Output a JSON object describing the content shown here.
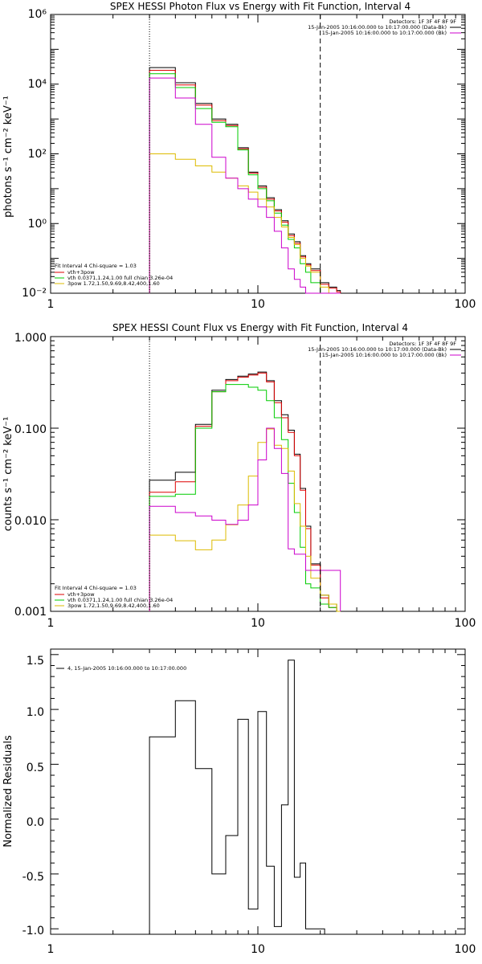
{
  "chart_data": [
    {
      "type": "line",
      "title": "SPEX HESSI Photon Flux vs Energy with Fit Function, Interval 4",
      "ylabel": "photons s⁻¹ cm⁻² keV⁻¹",
      "xlabel": "",
      "x_scale": "log",
      "y_scale": "log",
      "xlim": [
        1,
        100
      ],
      "ylim": [
        0.01,
        1000000
      ],
      "x_tick_labels": [
        "1",
        "10",
        "100"
      ],
      "y_tick_labels": [
        "10⁻²",
        "10⁰",
        "10²",
        "10⁴",
        "10⁶"
      ],
      "fit_range": [
        3,
        20
      ],
      "detectors": "Detectors: 1F 3F 4F 8F 9F",
      "legend_top": [
        "15-Jan-2005 10:16:00.000 to 10:17:00.000 (Data-Bk)",
        "15-Jan-2005 10:16:00.000 to 10:17:00.000 (Bk)"
      ],
      "fit_header": "Fit Interval 4   Chi-square = 1.03",
      "legend_fit": [
        "vth+3pow",
        "vth 0.0371,1.24,1.00  full chian 3.26e-04",
        "3pow 1.72,1.50,9.69,8.42,400,1.60"
      ],
      "energy_edges": [
        3,
        4,
        5,
        6,
        7,
        8,
        9,
        10,
        11,
        12,
        13,
        14,
        15,
        16,
        17,
        18,
        19,
        20,
        21,
        22,
        23,
        24,
        25
      ],
      "series": [
        {
          "name": "15-Jan-2005 10:16:00.000 to 10:17:00.000 (Data-Bk)",
          "color": "#000000",
          "values": [
            30000,
            11000,
            2800,
            1000,
            700,
            150,
            30,
            12,
            5.5,
            2.5,
            1.2,
            0.5,
            0.3,
            0.12,
            0.07,
            0.05,
            0.05,
            0.02,
            0.02,
            0.015,
            0.015,
            0.012
          ]
        },
        {
          "name": "vth+3pow",
          "color": "#dd0000",
          "values": [
            25000,
            9500,
            2500,
            900,
            650,
            140,
            28,
            11,
            5,
            2.3,
            1.1,
            0.45,
            0.27,
            0.11,
            0.065,
            0.045,
            0.045,
            0.018,
            0.018,
            0.014,
            0.014,
            0.011
          ]
        },
        {
          "name": "vth 0.0371,1.24,1.00  full chian 3.26e-04",
          "color": "#00cc00",
          "values": [
            20000,
            8000,
            2000,
            800,
            600,
            130,
            25,
            10,
            4.5,
            2,
            0.9,
            0.35,
            0.2,
            0.07,
            0.04,
            0.02,
            0.02,
            0.008,
            0.008,
            0.006,
            0.006,
            0.005
          ]
        },
        {
          "name": "3pow 1.72,1.50,9.69,8.42,400,1.60",
          "color": "#ddbb00",
          "values": [
            100,
            70,
            45,
            30,
            20,
            12,
            8,
            5,
            3,
            1.5,
            0.8,
            0.4,
            0.25,
            0.1,
            0.06,
            0.04,
            0.04,
            0.015,
            0.015,
            0.01,
            0.01,
            0.008
          ]
        },
        {
          "name": "15-Jan-2005 10:16:00.000 to 10:17:00.000 (Bk)",
          "color": "#cc00cc",
          "values": [
            15000,
            4000,
            700,
            80,
            20,
            10,
            5,
            3,
            1.5,
            0.6,
            0.2,
            0.05,
            0.025,
            0.015,
            0.01,
            0.008,
            0.008,
            0.008,
            0.008,
            0.008,
            0.008,
            0.008
          ]
        }
      ]
    },
    {
      "type": "line",
      "title": "SPEX HESSI Count Flux vs Energy with Fit Function, Interval 4",
      "ylabel": "counts s⁻¹ cm⁻² keV⁻¹",
      "xlabel": "",
      "x_scale": "log",
      "y_scale": "log",
      "xlim": [
        1,
        100
      ],
      "ylim": [
        0.001,
        1
      ],
      "x_tick_labels": [
        "1",
        "10",
        "100"
      ],
      "y_tick_labels": [
        "0.001",
        "0.010",
        "0.100",
        "1.000"
      ],
      "fit_range": [
        3,
        20
      ],
      "detectors": "Detectors: 1F 3F 4F 8F 9F",
      "legend_top": [
        "15-Jan-2005 10:16:00.000 to 10:17:00.000 (Data-Bk)",
        "15-Jan-2005 10:16:00.000 to 10:17:00.000 (Bk)"
      ],
      "fit_header": "Fit Interval 4   Chi-square = 1.03",
      "legend_fit": [
        "vth+3pow",
        "vth 0.0371,1.24,1.00  full chian 3.26e-04",
        "3pow 1.72,1.50,9.69,8.42,400,1.60"
      ],
      "energy_edges": [
        3,
        4,
        5,
        6,
        7,
        8,
        9,
        10,
        11,
        12,
        13,
        14,
        15,
        16,
        17,
        18,
        19,
        20,
        21,
        22,
        23,
        24,
        25
      ],
      "series": [
        {
          "name": "15-Jan-2005 10:16:00.000 to 10:17:00.000 (Data-Bk)",
          "color": "#000000",
          "values": [
            0.027,
            0.033,
            0.11,
            0.26,
            0.34,
            0.37,
            0.39,
            0.41,
            0.33,
            0.2,
            0.14,
            0.095,
            0.052,
            0.022,
            0.0085,
            0.0033,
            0.0033,
            0.0015,
            0.0015,
            0.0012,
            0.0012,
            0.001
          ]
        },
        {
          "name": "vth+3pow",
          "color": "#dd0000",
          "values": [
            0.02,
            0.026,
            0.105,
            0.25,
            0.33,
            0.36,
            0.38,
            0.4,
            0.32,
            0.19,
            0.13,
            0.09,
            0.05,
            0.021,
            0.008,
            0.0032,
            0.0032,
            0.0014,
            0.0014,
            0.0011,
            0.0011,
            0.001
          ]
        },
        {
          "name": "vth 0.0371,1.24,1.00  full chian 3.26e-04",
          "color": "#00cc00",
          "values": [
            0.018,
            0.019,
            0.1,
            0.25,
            0.3,
            0.3,
            0.28,
            0.26,
            0.2,
            0.13,
            0.075,
            0.025,
            0.012,
            0.005,
            0.002,
            0.0018,
            0.0018,
            0.0012,
            0.0012,
            0.0011,
            0.0011,
            0.001
          ]
        },
        {
          "name": "3pow 1.72,1.50,9.69,8.42,400,1.60",
          "color": "#ddbb00",
          "values": [
            0.0068,
            0.0059,
            0.0047,
            0.006,
            0.0088,
            0.0145,
            0.03,
            0.07,
            0.098,
            0.065,
            0.06,
            0.034,
            0.015,
            0.0085,
            0.004,
            0.0023,
            0.0023,
            0.0015,
            0.0015,
            0.0012,
            0.0012,
            0.001
          ]
        },
        {
          "name": "15-Jan-2005 10:16:00.000 to 10:17:00.000 (Bk)",
          "color": "#cc00cc",
          "values": [
            0.014,
            0.012,
            0.011,
            0.0099,
            0.0089,
            0.0099,
            0.0145,
            0.045,
            0.1,
            0.06,
            0.032,
            0.0048,
            0.0042,
            0.0042,
            0.0028,
            0.0028,
            0.0028,
            0.0028,
            0.0028,
            0.0028,
            0.0028,
            0.0028
          ]
        }
      ]
    },
    {
      "type": "line",
      "title": "",
      "ylabel": "Normalized Residuals",
      "xlabel": "",
      "x_scale": "log",
      "y_scale": "linear",
      "xlim": [
        1,
        100
      ],
      "ylim": [
        -1.05,
        1.55
      ],
      "x_tick_labels": [
        "1",
        "10",
        "100"
      ],
      "y_tick_labels": [
        "-1.0",
        "-0.5",
        "0.0",
        "0.5",
        "1.0",
        "1.5"
      ],
      "legend": [
        "4, 15-Jan-2005 10:16:00.000 to 10:17:00.000"
      ],
      "energy_edges": [
        3,
        4,
        5,
        6,
        7,
        8,
        9,
        10,
        11,
        12,
        13,
        14,
        15,
        16,
        17,
        18,
        19,
        20,
        21
      ],
      "series": [
        {
          "name": "4, 15-Jan-2005 10:16:00.000 to 10:17:00.000",
          "color": "#000000",
          "values": [
            0.75,
            1.08,
            0.46,
            -0.5,
            -0.15,
            0.91,
            -0.82,
            0.98,
            -0.43,
            -0.98,
            0.13,
            1.45,
            -0.53,
            -0.4,
            -1.0,
            -1.0,
            -1.0,
            -1.0
          ]
        }
      ]
    }
  ]
}
